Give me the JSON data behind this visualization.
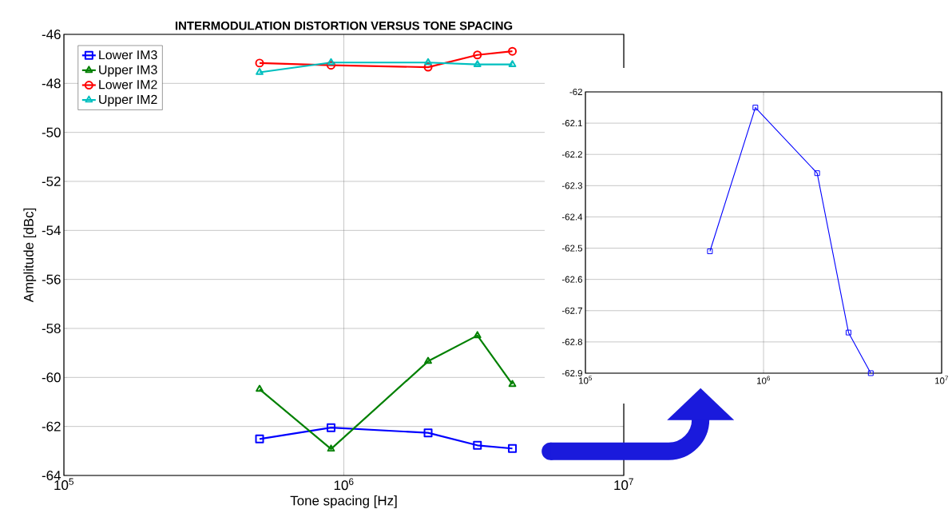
{
  "chart_data": [
    {
      "type": "line",
      "title": "INTERMODULATION DISTORTION VERSUS TONE SPACING",
      "xlabel": "Tone spacing [Hz]",
      "ylabel": "Amplitude [dBc]",
      "log": "x",
      "x": [
        500000,
        900000,
        2000000,
        3000000,
        4000000
      ],
      "xlim": [
        100000,
        10000000
      ],
      "xticks": [
        {
          "value": 100000,
          "label": "10$^{5}$"
        },
        {
          "value": 1000000,
          "label": "10$^{6}$"
        },
        {
          "value": 10000000,
          "label": "10$^{7}$"
        }
      ],
      "ylim": [
        -64,
        -46
      ],
      "yticks": [
        -64,
        -62,
        -60,
        -58,
        -56,
        -54,
        -52,
        -50,
        -48,
        -46
      ],
      "grid": true,
      "legend": "top left",
      "line_style": "solid",
      "series": [
        {
          "name": "Lower IM3",
          "color": "#0000ff",
          "marker": "square",
          "values": [
            -62.51,
            -62.05,
            -62.26,
            -62.77,
            -62.9
          ]
        },
        {
          "name": "Upper IM3",
          "color": "#008000",
          "marker": "triangle",
          "values": [
            -60.48,
            -62.92,
            -59.34,
            -58.29,
            -60.28
          ]
        },
        {
          "name": "Lower IM2",
          "color": "#ff0000",
          "marker": "circle",
          "values": [
            -47.17,
            -47.26,
            -47.34,
            -46.84,
            -46.69
          ]
        },
        {
          "name": "Upper IM2",
          "color": "#00bfbf",
          "marker": "triangle",
          "values": [
            -47.55,
            -47.15,
            -47.15,
            -47.23,
            -47.23
          ]
        }
      ]
    },
    {
      "type": "line",
      "log": "x",
      "x": [
        500000,
        900000,
        2000000,
        3000000,
        4000000
      ],
      "xlim": [
        100000,
        10000000
      ],
      "xticks": [
        {
          "value": 100000,
          "label": "10$^{5}$"
        },
        {
          "value": 1000000,
          "label": "10$^{6}$"
        },
        {
          "value": 10000000,
          "label": "10$^{7}$"
        }
      ],
      "ylim": [
        -62.9,
        -62
      ],
      "yticks": [
        -62.9,
        -62.8,
        -62.7,
        -62.6,
        -62.5,
        -62.4,
        -62.3,
        -62.2,
        -62.1,
        -62
      ],
      "grid": true,
      "marker": "square",
      "line_style": "solid",
      "series": [
        {
          "color": "#0000ff",
          "values": [
            -62.51,
            -62.05,
            -62.26,
            -62.77,
            -62.9
          ]
        }
      ]
    }
  ]
}
